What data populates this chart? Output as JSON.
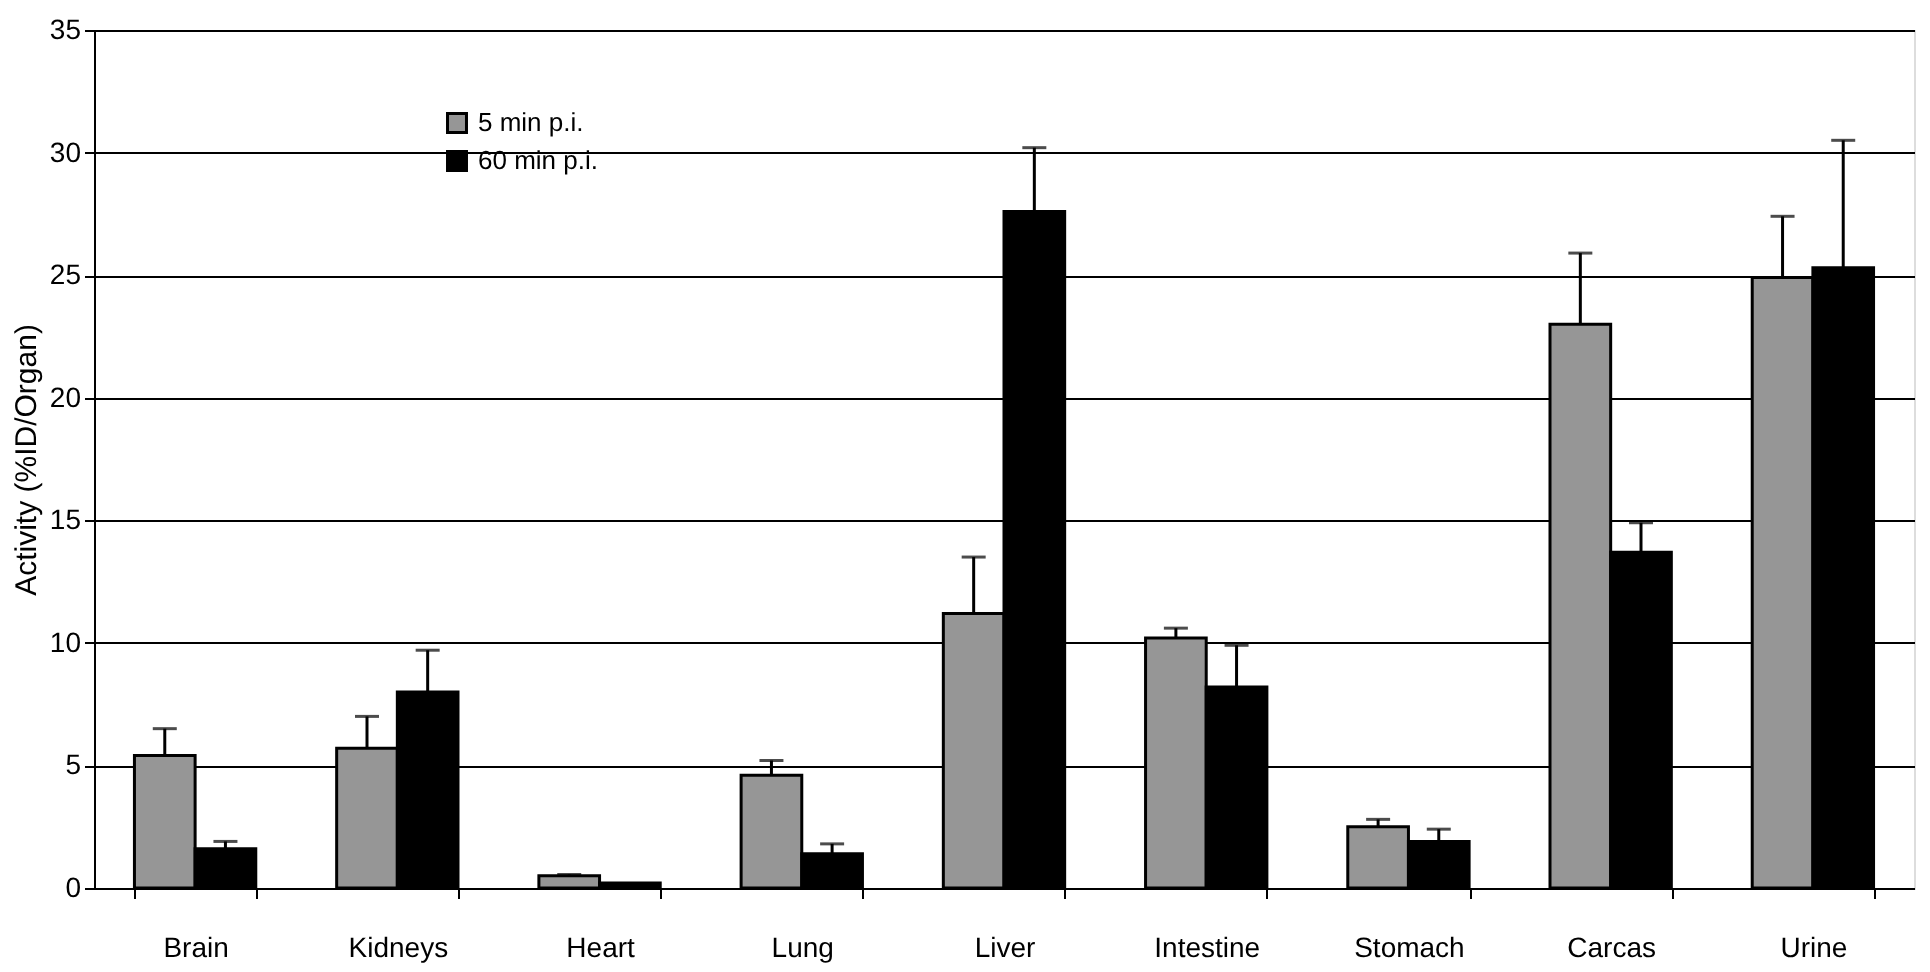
{
  "chart_data": {
    "type": "bar",
    "ylabel": "Activity (%ID/Organ)",
    "categories": [
      "Brain",
      "Kidneys",
      "Heart",
      "Lung",
      "Liver",
      "Intestine",
      "Stomach",
      "Carcas",
      "Urine"
    ],
    "series": [
      {
        "name": "5 min p.i.",
        "color": "#969696",
        "values": [
          5.4,
          5.7,
          0.5,
          4.6,
          11.2,
          10.2,
          2.5,
          23.0,
          24.9
        ],
        "errors": [
          [
            5.4,
            6.5
          ],
          [
            5.7,
            7.0
          ],
          [
            0.5,
            0.55
          ],
          [
            4.6,
            5.2
          ],
          [
            11.2,
            13.5
          ],
          [
            10.2,
            10.6
          ],
          [
            2.5,
            2.8
          ],
          [
            23.0,
            25.9
          ],
          [
            24.9,
            27.4
          ]
        ]
      },
      {
        "name": "60 min p.i.",
        "color": "#000000",
        "values": [
          1.6,
          8.0,
          0.2,
          1.4,
          27.6,
          8.2,
          1.9,
          13.7,
          25.3
        ],
        "errors": [
          [
            1.6,
            1.9
          ],
          [
            8.0,
            9.7
          ],
          null,
          [
            1.4,
            1.8
          ],
          [
            27.6,
            30.2
          ],
          [
            8.2,
            9.9
          ],
          [
            1.9,
            2.4
          ],
          [
            13.7,
            14.9
          ],
          [
            25.3,
            30.5
          ]
        ]
      }
    ],
    "ylim": [
      0,
      35
    ],
    "yticks": [
      0,
      5,
      10,
      15,
      20,
      25,
      30,
      35
    ],
    "grid": "y",
    "legend": "top left"
  }
}
